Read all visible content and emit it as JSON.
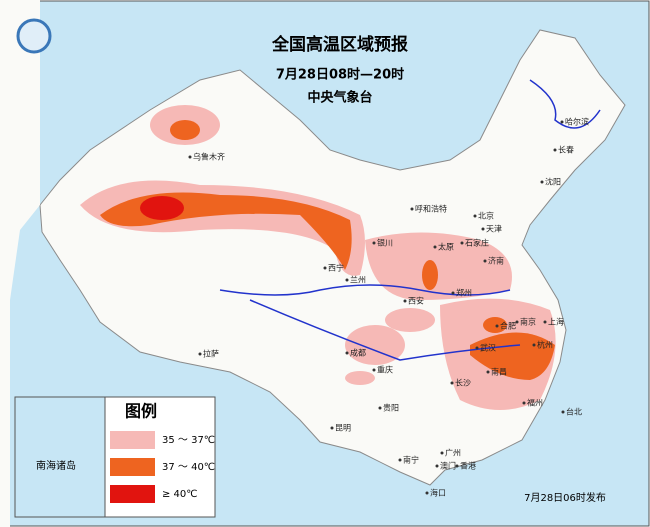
{
  "header": {
    "title": "全国高温区域预报",
    "period": "7月28日08时—20时",
    "issuer": "中央气象台"
  },
  "cities": [
    "乌鲁木齐",
    "哈尔滨",
    "长春",
    "沈阳",
    "呼和浩特",
    "北京",
    "天津",
    "银川",
    "太原",
    "石家庄",
    "济南",
    "西宁",
    "兰州",
    "郑州",
    "西安",
    "合肥",
    "南京",
    "上海",
    "成都",
    "武汉",
    "杭州",
    "重庆",
    "南昌",
    "长沙",
    "拉萨",
    "贵阳",
    "福州",
    "昆明",
    "南宁",
    "广州",
    "台北",
    "香港",
    "澳门",
    "海口"
  ],
  "legend": {
    "title": "图例",
    "items": [
      {
        "label": "35 ～ 37℃",
        "color": "#f6b9b6"
      },
      {
        "label": "37 ～ 40℃",
        "color": "#ee6420"
      },
      {
        "label": "≥ 40℃",
        "color": "#e1140f"
      }
    ]
  },
  "inset": {
    "label": "南海诸岛"
  },
  "footer": "7月28日06时发布"
}
